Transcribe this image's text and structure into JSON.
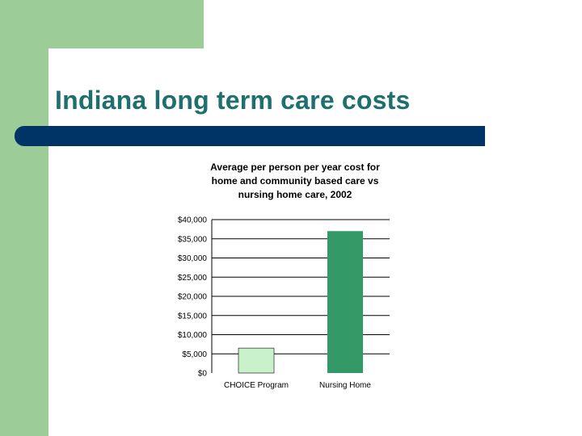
{
  "colors": {
    "sidebar_green": "#9ccc98",
    "title_bar_navy": "#003366",
    "title_text_teal": "#1f6f6f",
    "bar_choice": "#c9f2cb",
    "bar_nursing": "#339966"
  },
  "slide": {
    "title": "Indiana long term care costs"
  },
  "chart_data": {
    "type": "bar",
    "title": "Average per person per year cost for home and community based care vs nursing home care, 2002",
    "title_lines": [
      "Average per person per year cost for",
      "home and community based care vs",
      "nursing home care, 2002"
    ],
    "categories": [
      "CHOICE Program",
      "Nursing Home"
    ],
    "values": [
      6500,
      37000
    ],
    "ylim": [
      0,
      40000
    ],
    "yticks": [
      0,
      5000,
      10000,
      15000,
      20000,
      25000,
      30000,
      35000,
      40000
    ],
    "ytick_labels": [
      "$0",
      "$5,000",
      "$10,000",
      "$15,000",
      "$20,000",
      "$25,000",
      "$30,000",
      "$35,000",
      "$40,000"
    ],
    "grid": true,
    "xlabel": "",
    "ylabel": ""
  }
}
